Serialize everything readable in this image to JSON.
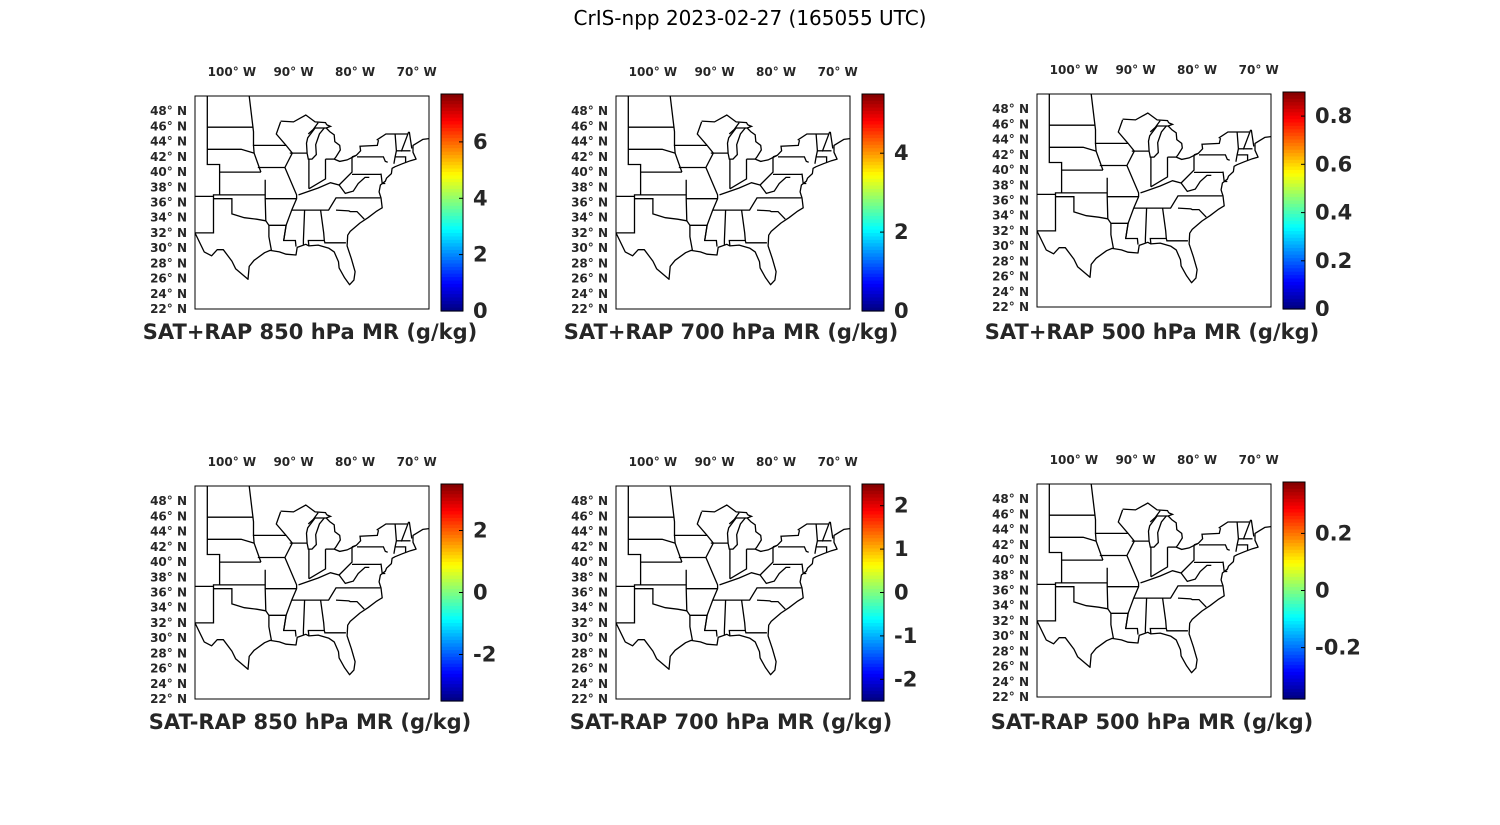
{
  "figure": {
    "title": "CrIS-npp 2023-02-27 (165055 UTC)",
    "lon_labels": [
      "100",
      "90",
      "80",
      "70"
    ],
    "lon_hemisphere": "W",
    "lat_labels": [
      "48",
      "46",
      "44",
      "42",
      "40",
      "38",
      "36",
      "34",
      "32",
      "30",
      "28",
      "26",
      "24",
      "22"
    ],
    "lat_hemisphere": "N",
    "degree_symbol": "°",
    "colormap": "jet"
  },
  "panels": [
    {
      "title": "SAT+RAP 850 hPa MR (g/kg)",
      "colorbar": {
        "min": 0,
        "max": 7.7,
        "ticks": [
          "0",
          "2",
          "4",
          "6"
        ],
        "tick_values": [
          0,
          2,
          4,
          6
        ]
      }
    },
    {
      "title": "SAT+RAP 700 hPa MR (g/kg)",
      "colorbar": {
        "min": 0,
        "max": 5.5,
        "ticks": [
          "0",
          "2",
          "4"
        ],
        "tick_values": [
          0,
          2,
          4
        ]
      }
    },
    {
      "title": "SAT+RAP 500 hPa MR (g/kg)",
      "colorbar": {
        "min": 0,
        "max": 0.9,
        "ticks": [
          "0",
          "0.2",
          "0.4",
          "0.6",
          "0.8"
        ],
        "tick_values": [
          0,
          0.2,
          0.4,
          0.6,
          0.8
        ]
      }
    },
    {
      "title": "SAT-RAP 850 hPa MR (g/kg)",
      "colorbar": {
        "min": -3.5,
        "max": 3.5,
        "ticks": [
          "-2",
          "0",
          "2"
        ],
        "tick_values": [
          -2,
          0,
          2
        ]
      }
    },
    {
      "title": "SAT-RAP 700 hPa MR (g/kg)",
      "colorbar": {
        "min": -2.5,
        "max": 2.5,
        "ticks": [
          "-2",
          "-1",
          "0",
          "1",
          "2"
        ],
        "tick_values": [
          -2,
          -1,
          0,
          1,
          2
        ]
      }
    },
    {
      "title": "SAT-RAP 500 hPa MR (g/kg)",
      "colorbar": {
        "min": -0.38,
        "max": 0.38,
        "ticks": [
          "-0.2",
          "0",
          "0.2"
        ],
        "tick_values": [
          -0.2,
          0,
          0.2
        ]
      }
    }
  ]
}
